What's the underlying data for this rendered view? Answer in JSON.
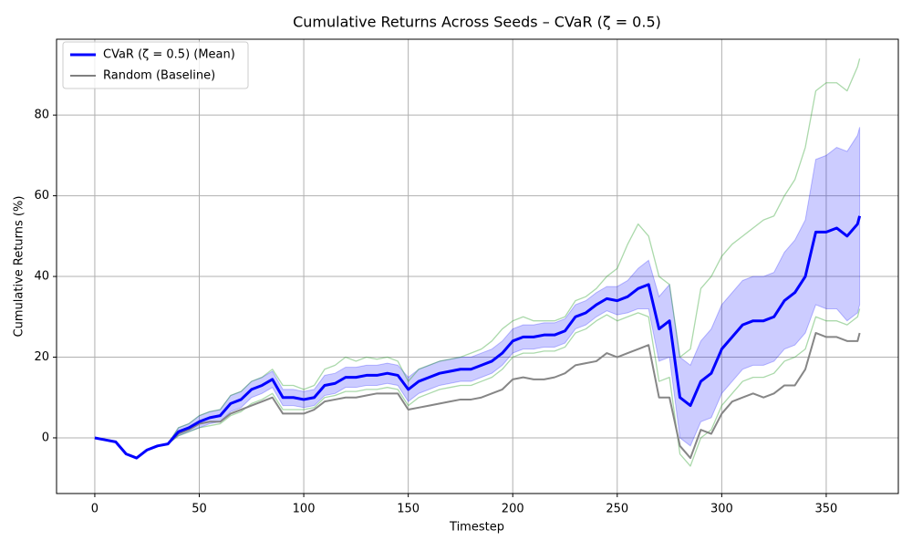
{
  "chart_data": {
    "type": "line",
    "title": "Cumulative Returns Across Seeds – CVaR (ζ = 0.5)",
    "xlabel": "Timestep",
    "ylabel": "Cumulative Returns (%)",
    "xlim": [
      -18.3,
      384.5
    ],
    "ylim": [
      -13.8,
      98.8
    ],
    "xticks": [
      0,
      50,
      100,
      150,
      200,
      250,
      300,
      350
    ],
    "yticks": [
      0,
      20,
      40,
      60,
      80
    ],
    "grid": true,
    "legend": "upper left",
    "x": [
      0,
      5,
      10,
      15,
      20,
      25,
      30,
      35,
      40,
      45,
      50,
      55,
      60,
      65,
      70,
      75,
      80,
      85,
      90,
      95,
      100,
      105,
      110,
      115,
      120,
      125,
      130,
      135,
      140,
      145,
      150,
      155,
      160,
      165,
      170,
      175,
      180,
      185,
      190,
      195,
      200,
      205,
      210,
      215,
      220,
      225,
      230,
      235,
      240,
      245,
      250,
      255,
      260,
      265,
      270,
      275,
      280,
      285,
      290,
      295,
      300,
      305,
      310,
      315,
      320,
      325,
      330,
      335,
      340,
      345,
      350,
      355,
      360,
      365,
      366
    ],
    "series": [
      {
        "name": "CVaR (ζ = 0.5) (Mean)",
        "color": "#0000ff",
        "linewidth": 3,
        "values": [
          0,
          -0.5,
          -1,
          -4,
          -5,
          -3,
          -2,
          -1.5,
          1.5,
          2.5,
          4,
          5,
          5.5,
          8.5,
          9.5,
          12,
          13,
          14.5,
          10,
          10,
          9.5,
          10,
          13,
          13.5,
          15,
          15,
          15.5,
          15.5,
          16,
          15.5,
          12,
          14,
          15,
          16,
          16.5,
          17,
          17,
          18,
          19,
          21,
          24,
          25,
          25,
          25.5,
          25.5,
          26.5,
          30,
          31,
          33,
          34.5,
          34,
          35,
          37,
          38,
          27,
          29,
          10,
          8,
          14,
          16,
          22,
          25,
          28,
          29,
          29,
          30,
          34,
          36,
          40,
          51,
          51,
          52,
          50,
          53,
          55
        ]
      },
      {
        "name": "Random (Baseline)",
        "color": "#7f7f7f",
        "linewidth": 2,
        "values": [
          0,
          -0.5,
          -1,
          -4,
          -5,
          -3,
          -2,
          -1.5,
          1,
          2,
          3.5,
          4,
          4,
          6,
          7,
          8,
          9,
          10,
          6,
          6,
          6,
          7,
          9,
          9.5,
          10,
          10,
          10.5,
          11,
          11,
          11,
          7,
          7.5,
          8,
          8.5,
          9,
          9.5,
          9.5,
          10,
          11,
          12,
          14.5,
          15,
          14.5,
          14.5,
          15,
          16,
          18,
          18.5,
          19,
          21,
          20,
          21,
          22,
          23,
          10,
          10,
          -2,
          -5,
          2,
          1,
          6,
          9,
          10,
          11,
          10,
          11,
          13,
          13,
          17,
          26,
          25,
          25,
          24,
          24,
          26
        ]
      }
    ],
    "band": {
      "color": "#0000ff",
      "lower": [
        0,
        -0.5,
        -1,
        -4,
        -5,
        -3,
        -2,
        -1.5,
        0.5,
        1.5,
        2.5,
        3.5,
        4,
        6.5,
        7.5,
        10,
        11,
        12.5,
        8,
        8,
        7.5,
        8,
        10.5,
        11,
        12.5,
        12.5,
        13,
        13,
        13.5,
        13,
        9,
        11,
        12,
        13,
        13.5,
        14,
        14,
        15,
        16,
        18,
        21,
        22,
        22,
        22.5,
        22.5,
        23.5,
        27,
        28,
        30,
        31.5,
        30.5,
        31,
        32,
        32,
        19,
        20,
        0,
        -2,
        4,
        5,
        11,
        14,
        17,
        18,
        18,
        19,
        22,
        23,
        26,
        33,
        32,
        32,
        29,
        31,
        33
      ],
      "upper": [
        0,
        -0.5,
        -1,
        -4,
        -5,
        -3,
        -2,
        -1.5,
        2.5,
        3.5,
        5.5,
        6.5,
        7,
        10.5,
        11.5,
        14,
        15,
        16.5,
        12,
        12,
        11.5,
        12,
        15.5,
        16,
        17.5,
        17.5,
        18,
        18,
        18.5,
        18,
        15,
        17,
        18,
        19,
        19.5,
        20,
        20,
        21,
        22,
        24,
        27,
        28,
        28,
        28.5,
        28.5,
        29.5,
        33,
        34,
        36,
        37.5,
        37.5,
        39,
        42,
        44,
        35,
        38,
        20,
        18,
        24,
        27,
        33,
        36,
        39,
        40,
        40,
        41,
        46,
        49,
        54,
        69,
        70,
        72,
        71,
        75,
        77
      ]
    },
    "seeds": [
      {
        "color": "#2ca02c",
        "values": [
          0,
          -0.5,
          -1,
          -4,
          -5,
          -3,
          -2,
          -1.5,
          2.5,
          3.5,
          5.5,
          6.5,
          7,
          10.5,
          11.5,
          14,
          15,
          17,
          13,
          13,
          12,
          13,
          17,
          18,
          20,
          19,
          20,
          19.5,
          20,
          19,
          14,
          17,
          18,
          19,
          19.5,
          20,
          21,
          22,
          24,
          27,
          29,
          30,
          29,
          29,
          29,
          30,
          34,
          35,
          37,
          40,
          42,
          48,
          53,
          50,
          40,
          38,
          20,
          22,
          37,
          40,
          45,
          48,
          50,
          52,
          54,
          55,
          60,
          64,
          72,
          86,
          88,
          88,
          86,
          92,
          94
        ]
      },
      {
        "color": "#2ca02c",
        "values": [
          0,
          -0.5,
          -1,
          -4,
          -5,
          -3,
          -2,
          -1.5,
          0.5,
          1.5,
          2.5,
          3,
          3.5,
          5.5,
          6.5,
          8.5,
          9.5,
          11,
          7,
          7,
          7,
          7.5,
          10,
          10.5,
          11.5,
          11.5,
          12,
          12,
          12.5,
          12,
          8,
          10,
          11,
          12,
          12.5,
          13,
          13,
          14,
          15,
          17,
          20,
          21,
          21,
          21.5,
          21.5,
          22.5,
          26,
          27,
          29,
          30.5,
          29,
          30,
          31,
          30,
          14,
          15,
          -4,
          -7,
          0,
          2,
          8,
          11,
          14,
          15,
          15,
          16,
          19,
          20,
          22,
          30,
          29,
          29,
          28,
          30,
          32
        ]
      }
    ]
  }
}
